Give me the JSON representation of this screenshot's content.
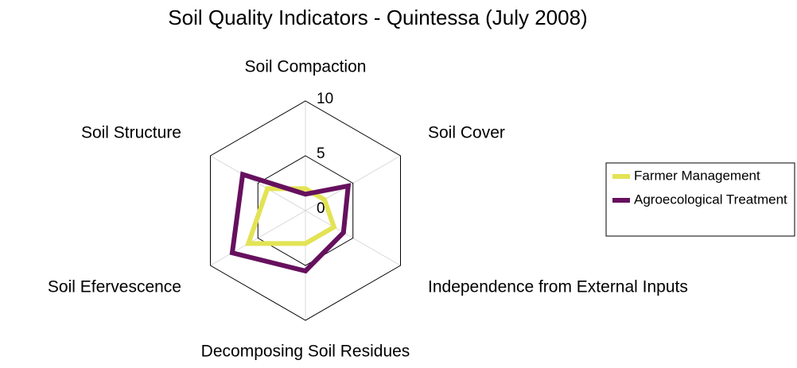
{
  "chart_data": {
    "type": "radar",
    "title": "Soil Quality Indicators - Quintessa (July 2008)",
    "categories": [
      "Soil Compaction",
      "Soil Cover",
      "Independence from External Inputs",
      "Decomposing Soil Residues",
      "Soil Efervescence",
      "Soil Structure"
    ],
    "series": [
      {
        "name": "Farmer Management",
        "color": "#e3e355",
        "values": [
          2,
          2,
          3,
          3,
          6,
          4
        ]
      },
      {
        "name": "Agroecological Treatment",
        "color": "#66105e",
        "values": [
          1.5,
          4.5,
          4,
          5.5,
          7.7,
          6.6
        ]
      }
    ],
    "ylim": [
      0,
      10
    ],
    "yticks": [
      0,
      5,
      10
    ],
    "grid": true,
    "legend": "right"
  }
}
